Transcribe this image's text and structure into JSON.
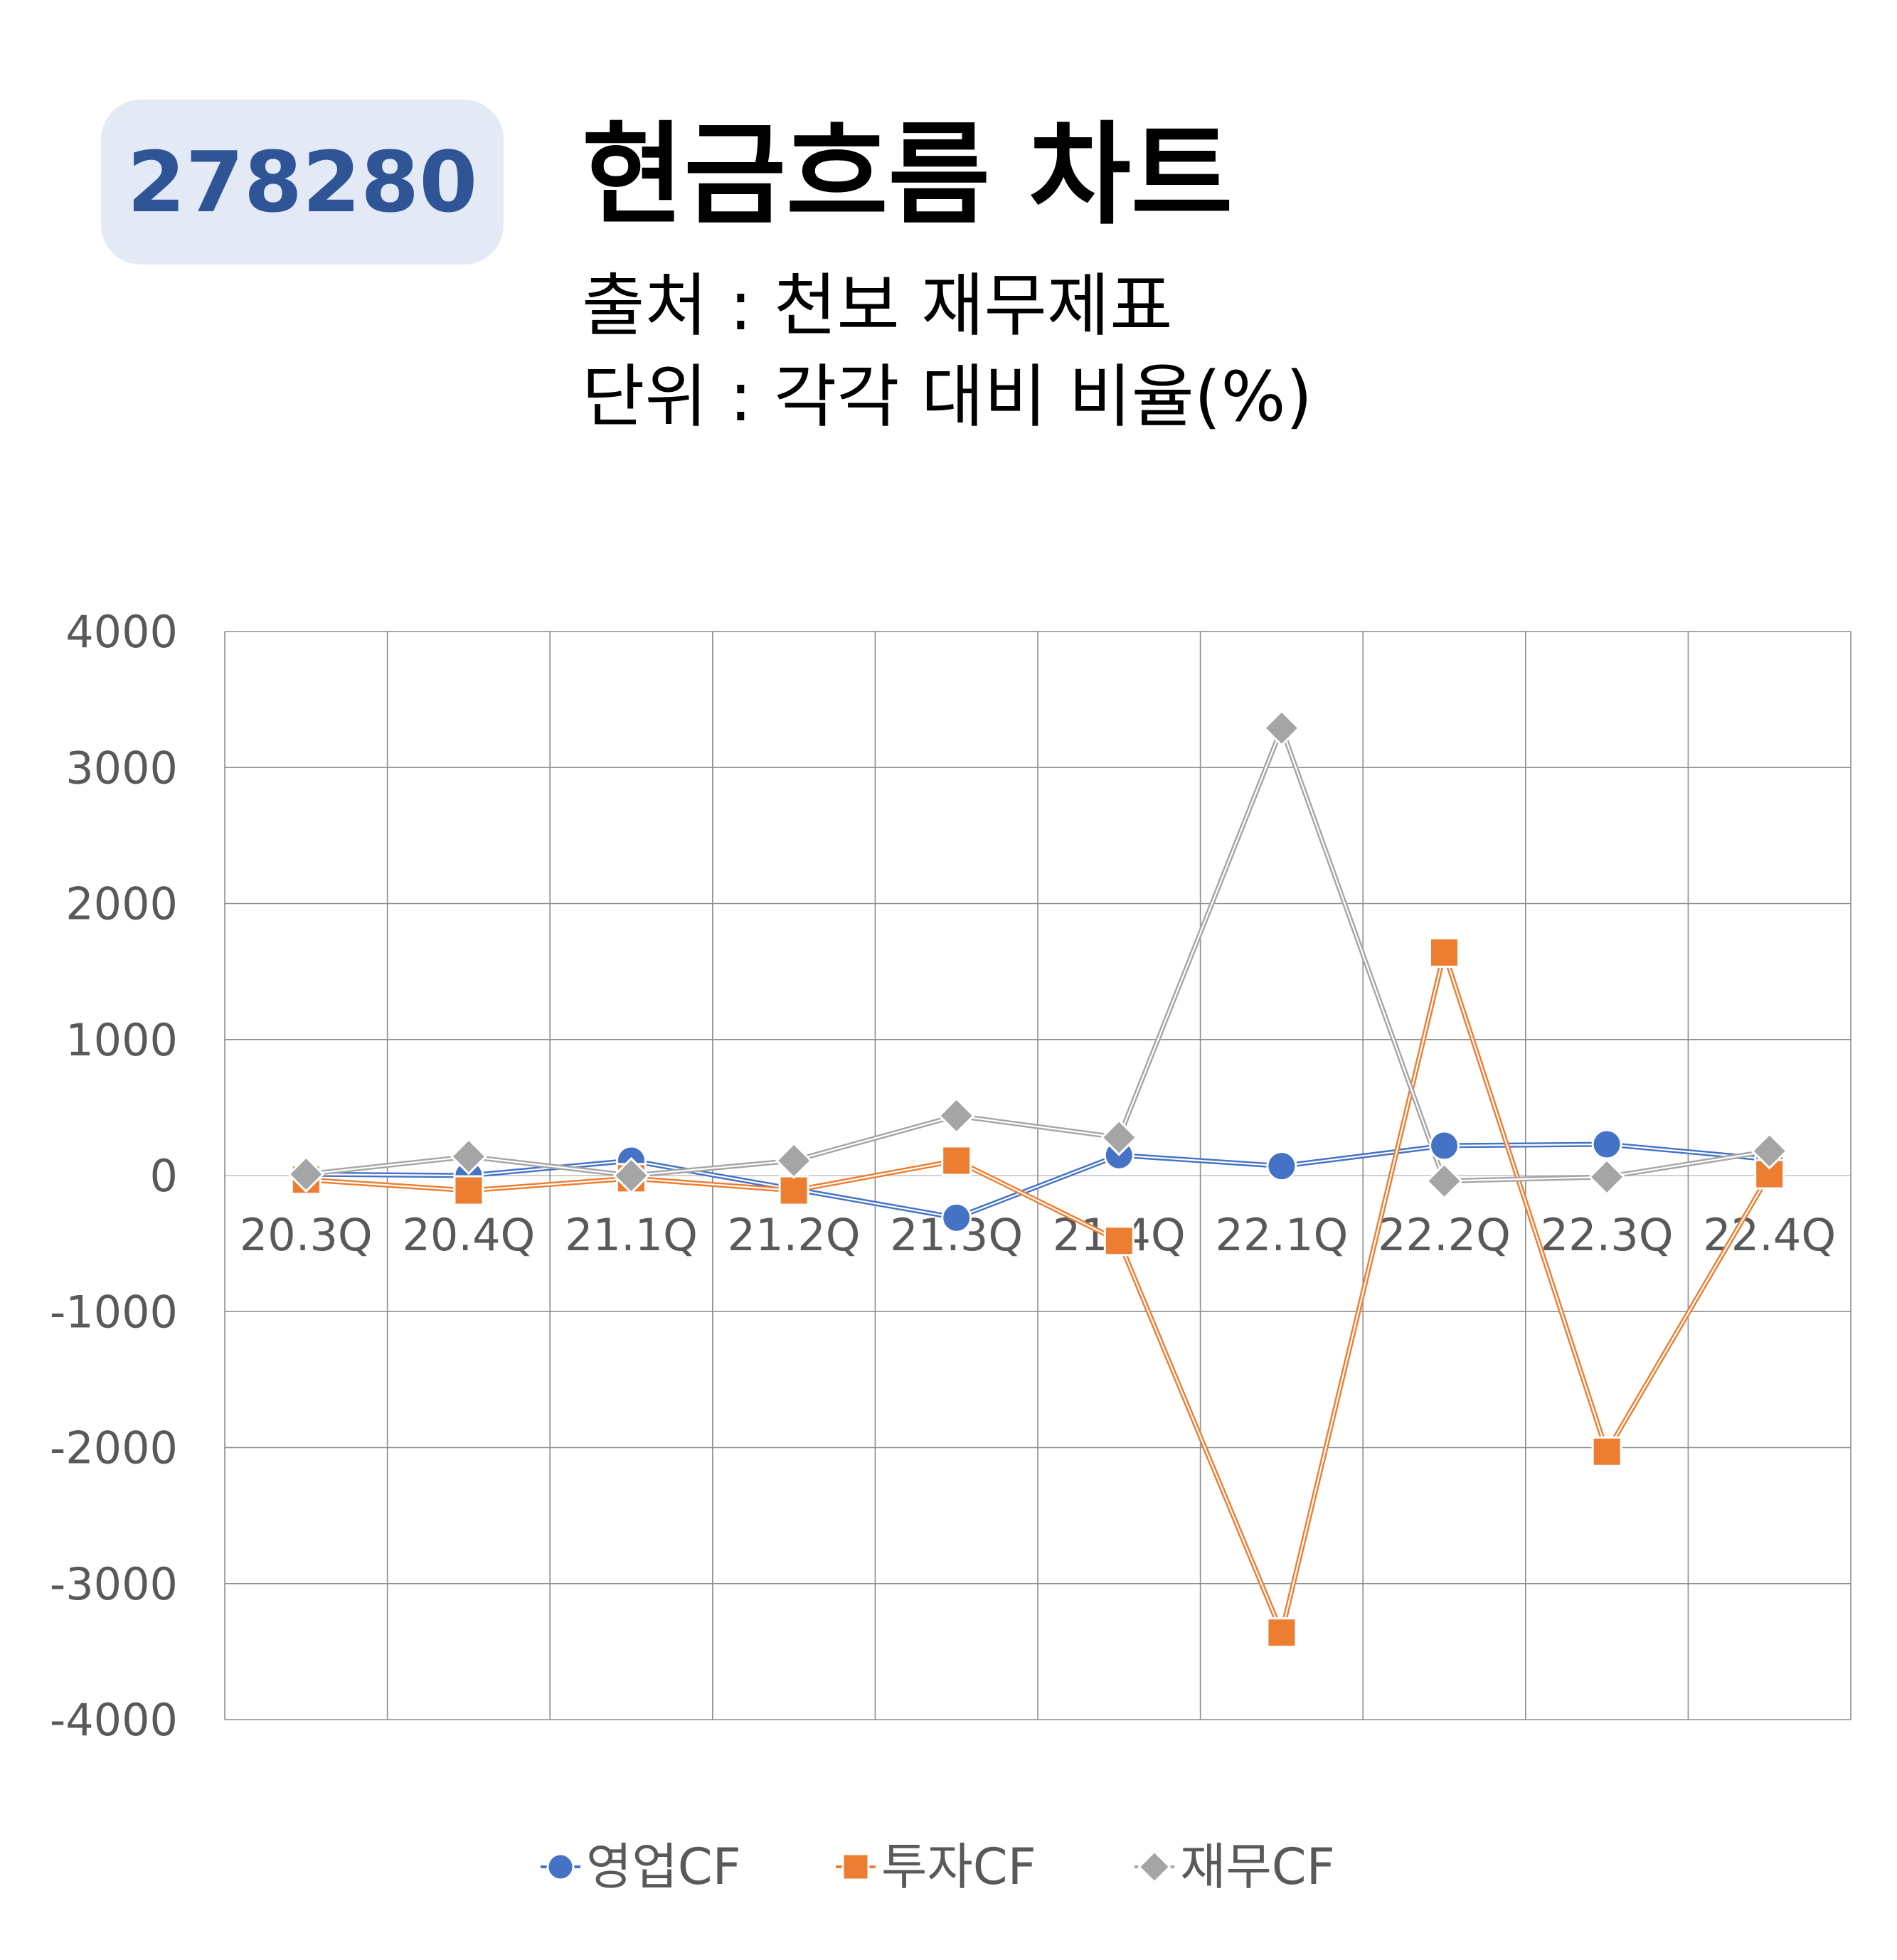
{
  "badge": "278280",
  "title": "현금흐름 차트",
  "source_line": "출처 : 천보 재무제표",
  "unit_line": "단위 : 각각 대비 비율(%)",
  "chart_data": {
    "type": "line",
    "categories": [
      "20.3Q",
      "20.4Q",
      "21.1Q",
      "21.2Q",
      "21.3Q",
      "21.4Q",
      "22.1Q",
      "22.2Q",
      "22.3Q",
      "22.4Q"
    ],
    "ylim": [
      -4000,
      4000
    ],
    "yticks": [
      4000,
      3000,
      2000,
      1000,
      0,
      -1000,
      -2000,
      -3000,
      -4000
    ],
    "grid": true,
    "legend_position": "bottom",
    "series": [
      {
        "name": "영업CF",
        "color": "#4472c4",
        "marker": "circle",
        "values": [
          10,
          0,
          110,
          -100,
          -310,
          150,
          70,
          220,
          230,
          120
        ]
      },
      {
        "name": "투자CF",
        "color": "#ed7d31",
        "marker": "square",
        "values": [
          -30,
          -110,
          -20,
          -110,
          110,
          -480,
          -3360,
          1640,
          -2030,
          10
        ]
      },
      {
        "name": "재무CF",
        "color": "#a5a5a5",
        "marker": "diamond",
        "values": [
          10,
          140,
          0,
          110,
          440,
          280,
          3290,
          -40,
          -10,
          180
        ]
      }
    ]
  }
}
